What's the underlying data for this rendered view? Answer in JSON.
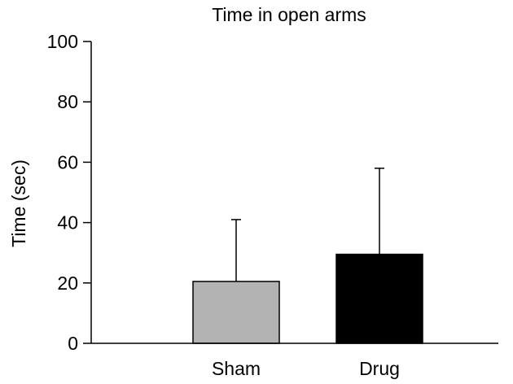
{
  "chart_data": {
    "type": "bar",
    "title": "Time in open arms",
    "xlabel": "",
    "ylabel": "Time (sec)",
    "ylim": [
      0,
      100
    ],
    "yticks": [
      0,
      20,
      40,
      60,
      80,
      100
    ],
    "categories": [
      "Sham",
      "Drug"
    ],
    "values": [
      20.5,
      29.5
    ],
    "error_upper": [
      20.5,
      28.5
    ],
    "error_style": "upper-only",
    "bar_colors": [
      "#b3b3b3",
      "#000000"
    ],
    "bar_edge_color": "#000000",
    "grid": false,
    "legend": "none"
  }
}
